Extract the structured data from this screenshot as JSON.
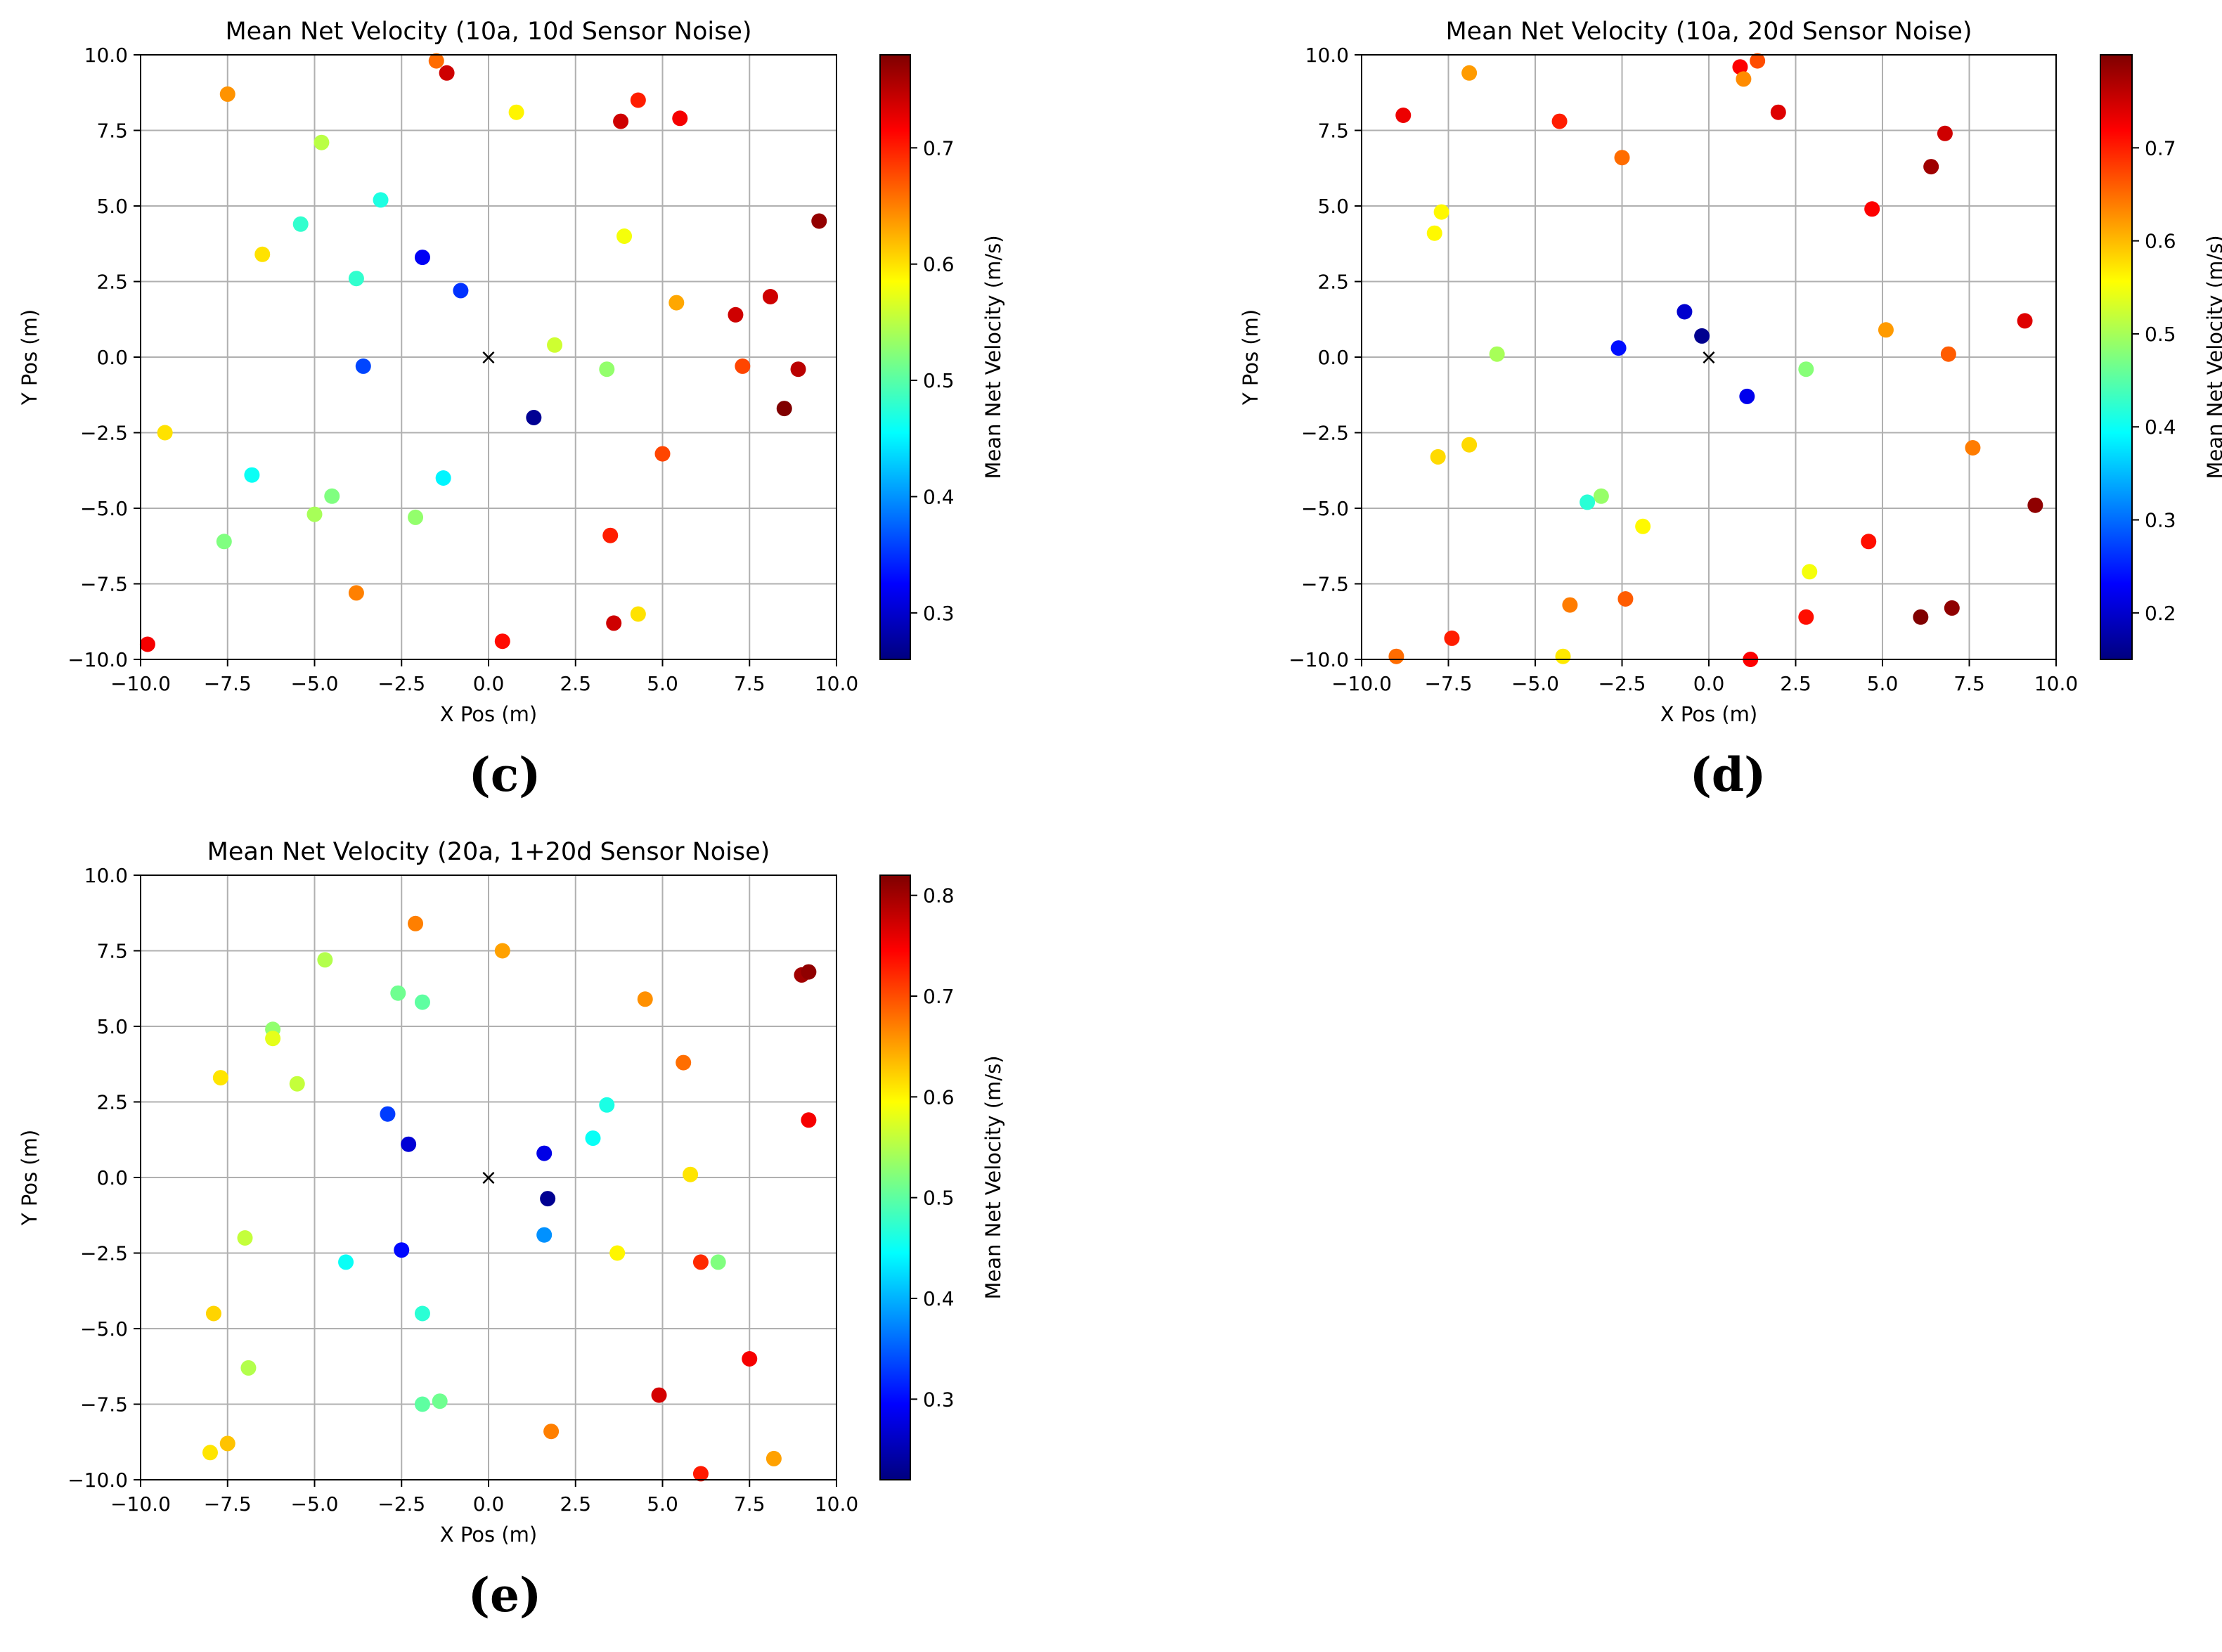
{
  "chart_data": [
    {
      "type": "scatter",
      "panel_label": "(c)",
      "title": "Mean Net Velocity (10a, 10d Sensor Noise)",
      "xlabel": "X Pos (m)",
      "ylabel": "Y Pos (m)",
      "xlim": [
        -10,
        10
      ],
      "ylim": [
        -10,
        10
      ],
      "grid": true,
      "x_ticks": [
        -10,
        -7.5,
        -5,
        -2.5,
        0,
        2.5,
        5,
        7.5,
        10
      ],
      "y_ticks": [
        -10,
        -7.5,
        -5,
        -2.5,
        0,
        2.5,
        5,
        7.5,
        10
      ],
      "x_tick_labels": [
        "−10.0",
        "−7.5",
        "−5.0",
        "−2.5",
        "0.0",
        "2.5",
        "5.0",
        "7.5",
        "10.0"
      ],
      "y_tick_labels": [
        "−10.0",
        "−7.5",
        "−5.0",
        "−2.5",
        "0.0",
        "2.5",
        "5.0",
        "7.5",
        "10.0"
      ],
      "origin_marker": "×",
      "colorbar": {
        "label": "Mean Net Velocity (m/s)",
        "range": [
          0.26,
          0.78
        ],
        "ticks": [
          0.3,
          0.4,
          0.5,
          0.6,
          0.7
        ],
        "tick_labels": [
          "0.3",
          "0.4",
          "0.5",
          "0.6",
          "0.7"
        ]
      },
      "points": [
        {
          "x": -1.5,
          "y": 9.8,
          "v": 0.66
        },
        {
          "x": -1.2,
          "y": 9.4,
          "v": 0.74
        },
        {
          "x": -7.5,
          "y": 8.7,
          "v": 0.64
        },
        {
          "x": 0.8,
          "y": 8.1,
          "v": 0.59
        },
        {
          "x": 4.3,
          "y": 8.5,
          "v": 0.7
        },
        {
          "x": 3.8,
          "y": 7.8,
          "v": 0.74
        },
        {
          "x": 5.5,
          "y": 7.9,
          "v": 0.72
        },
        {
          "x": -4.8,
          "y": 7.1,
          "v": 0.55
        },
        {
          "x": -3.1,
          "y": 5.2,
          "v": 0.47
        },
        {
          "x": -5.4,
          "y": 4.4,
          "v": 0.48
        },
        {
          "x": 9.5,
          "y": 4.5,
          "v": 0.77
        },
        {
          "x": 3.9,
          "y": 4.0,
          "v": 0.58
        },
        {
          "x": -6.5,
          "y": 3.4,
          "v": 0.6
        },
        {
          "x": -1.9,
          "y": 3.3,
          "v": 0.32
        },
        {
          "x": -3.8,
          "y": 2.6,
          "v": 0.48
        },
        {
          "x": -0.8,
          "y": 2.2,
          "v": 0.35
        },
        {
          "x": 5.4,
          "y": 1.8,
          "v": 0.63
        },
        {
          "x": 8.1,
          "y": 2.0,
          "v": 0.74
        },
        {
          "x": 7.1,
          "y": 1.4,
          "v": 0.74
        },
        {
          "x": 1.9,
          "y": 0.4,
          "v": 0.56
        },
        {
          "x": -3.6,
          "y": -0.3,
          "v": 0.36
        },
        {
          "x": 3.4,
          "y": -0.4,
          "v": 0.53
        },
        {
          "x": 7.3,
          "y": -0.3,
          "v": 0.68
        },
        {
          "x": 8.9,
          "y": -0.4,
          "v": 0.75
        },
        {
          "x": 8.5,
          "y": -1.7,
          "v": 0.78
        },
        {
          "x": 1.3,
          "y": -2.0,
          "v": 0.27
        },
        {
          "x": -9.3,
          "y": -2.5,
          "v": 0.6
        },
        {
          "x": 5.0,
          "y": -3.2,
          "v": 0.68
        },
        {
          "x": -6.8,
          "y": -3.9,
          "v": 0.46
        },
        {
          "x": -1.3,
          "y": -4.0,
          "v": 0.45
        },
        {
          "x": -4.5,
          "y": -4.6,
          "v": 0.52
        },
        {
          "x": -5.0,
          "y": -5.2,
          "v": 0.54
        },
        {
          "x": -2.1,
          "y": -5.3,
          "v": 0.53
        },
        {
          "x": 3.5,
          "y": -5.9,
          "v": 0.7
        },
        {
          "x": -7.6,
          "y": -6.1,
          "v": 0.52
        },
        {
          "x": -3.8,
          "y": -7.8,
          "v": 0.65
        },
        {
          "x": 4.3,
          "y": -8.5,
          "v": 0.6
        },
        {
          "x": 3.6,
          "y": -8.8,
          "v": 0.74
        },
        {
          "x": -9.8,
          "y": -9.5,
          "v": 0.72
        },
        {
          "x": 0.4,
          "y": -9.4,
          "v": 0.71
        }
      ]
    },
    {
      "type": "scatter",
      "panel_label": "(d)",
      "title": "Mean Net Velocity (10a, 20d Sensor Noise)",
      "xlabel": "X Pos (m)",
      "ylabel": "Y Pos (m)",
      "xlim": [
        -10,
        10
      ],
      "ylim": [
        -10,
        10
      ],
      "grid": true,
      "x_ticks": [
        -10,
        -7.5,
        -5,
        -2.5,
        0,
        2.5,
        5,
        7.5,
        10
      ],
      "y_ticks": [
        -10,
        -7.5,
        -5,
        -2.5,
        0,
        2.5,
        5,
        7.5,
        10
      ],
      "x_tick_labels": [
        "−10.0",
        "−7.5",
        "−5.0",
        "−2.5",
        "0.0",
        "2.5",
        "5.0",
        "7.5",
        "10.0"
      ],
      "y_tick_labels": [
        "−10.0",
        "−7.5",
        "−5.0",
        "−2.5",
        "0.0",
        "2.5",
        "5.0",
        "7.5",
        "10.0"
      ],
      "origin_marker": "×",
      "colorbar": {
        "label": "Mean Net Velocity (m/s)",
        "range": [
          0.15,
          0.8
        ],
        "ticks": [
          0.2,
          0.3,
          0.4,
          0.5,
          0.6,
          0.7
        ],
        "tick_labels": [
          "0.2",
          "0.3",
          "0.4",
          "0.5",
          "0.6",
          "0.7"
        ]
      },
      "points": [
        {
          "x": 0.9,
          "y": 9.6,
          "v": 0.72
        },
        {
          "x": 1.4,
          "y": 9.8,
          "v": 0.67
        },
        {
          "x": 1.0,
          "y": 9.2,
          "v": 0.63
        },
        {
          "x": -6.9,
          "y": 9.4,
          "v": 0.62
        },
        {
          "x": -8.8,
          "y": 8.0,
          "v": 0.73
        },
        {
          "x": 2.0,
          "y": 8.1,
          "v": 0.74
        },
        {
          "x": -4.3,
          "y": 7.8,
          "v": 0.7
        },
        {
          "x": 6.8,
          "y": 7.4,
          "v": 0.75
        },
        {
          "x": -2.5,
          "y": 6.6,
          "v": 0.65
        },
        {
          "x": 6.4,
          "y": 6.3,
          "v": 0.78
        },
        {
          "x": 4.7,
          "y": 4.9,
          "v": 0.72
        },
        {
          "x": -7.7,
          "y": 4.8,
          "v": 0.56
        },
        {
          "x": -7.9,
          "y": 4.1,
          "v": 0.56
        },
        {
          "x": -0.7,
          "y": 1.5,
          "v": 0.2
        },
        {
          "x": 9.1,
          "y": 1.2,
          "v": 0.74
        },
        {
          "x": 5.1,
          "y": 0.9,
          "v": 0.62
        },
        {
          "x": -0.2,
          "y": 0.7,
          "v": 0.16
        },
        {
          "x": -2.6,
          "y": 0.3,
          "v": 0.24
        },
        {
          "x": -6.1,
          "y": 0.1,
          "v": 0.5
        },
        {
          "x": 6.9,
          "y": 0.1,
          "v": 0.66
        },
        {
          "x": 2.8,
          "y": -0.4,
          "v": 0.48
        },
        {
          "x": 1.1,
          "y": -1.3,
          "v": 0.22
        },
        {
          "x": -6.9,
          "y": -2.9,
          "v": 0.58
        },
        {
          "x": -7.8,
          "y": -3.3,
          "v": 0.58
        },
        {
          "x": 7.6,
          "y": -3.0,
          "v": 0.64
        },
        {
          "x": -3.1,
          "y": -4.6,
          "v": 0.49
        },
        {
          "x": -3.5,
          "y": -4.8,
          "v": 0.42
        },
        {
          "x": 9.4,
          "y": -4.9,
          "v": 0.79
        },
        {
          "x": -1.9,
          "y": -5.6,
          "v": 0.56
        },
        {
          "x": 4.6,
          "y": -6.1,
          "v": 0.71
        },
        {
          "x": 2.9,
          "y": -7.1,
          "v": 0.55
        },
        {
          "x": -4.0,
          "y": -8.2,
          "v": 0.64
        },
        {
          "x": -2.4,
          "y": -8.0,
          "v": 0.66
        },
        {
          "x": 2.8,
          "y": -8.6,
          "v": 0.71
        },
        {
          "x": 6.1,
          "y": -8.6,
          "v": 0.8
        },
        {
          "x": 7.0,
          "y": -8.3,
          "v": 0.79
        },
        {
          "x": -7.4,
          "y": -9.3,
          "v": 0.7
        },
        {
          "x": -9.0,
          "y": -9.9,
          "v": 0.65
        },
        {
          "x": -4.2,
          "y": -9.9,
          "v": 0.57
        },
        {
          "x": 1.2,
          "y": -10.0,
          "v": 0.72
        }
      ]
    },
    {
      "type": "scatter",
      "panel_label": "(e)",
      "title": "Mean Net Velocity (20a, 1+20d Sensor Noise)",
      "xlabel": "X Pos (m)",
      "ylabel": "Y Pos (m)",
      "xlim": [
        -10,
        10
      ],
      "ylim": [
        -10,
        10
      ],
      "grid": true,
      "x_ticks": [
        -10,
        -7.5,
        -5,
        -2.5,
        0,
        2.5,
        5,
        7.5,
        10
      ],
      "y_ticks": [
        -10,
        -7.5,
        -5,
        -2.5,
        0,
        2.5,
        5,
        7.5,
        10
      ],
      "x_tick_labels": [
        "−10.0",
        "−7.5",
        "−5.0",
        "−2.5",
        "0.0",
        "2.5",
        "5.0",
        "7.5",
        "10.0"
      ],
      "y_tick_labels": [
        "−10.0",
        "−7.5",
        "−5.0",
        "−2.5",
        "0.0",
        "2.5",
        "5.0",
        "7.5",
        "10.0"
      ],
      "origin_marker": "×",
      "colorbar": {
        "label": "Mean Net Velocity (m/s)",
        "range": [
          0.22,
          0.82
        ],
        "ticks": [
          0.3,
          0.4,
          0.5,
          0.6,
          0.7,
          0.8
        ],
        "tick_labels": [
          "0.3",
          "0.4",
          "0.5",
          "0.6",
          "0.7",
          "0.8"
        ]
      },
      "points": [
        {
          "x": -2.1,
          "y": 8.4,
          "v": 0.67
        },
        {
          "x": 0.4,
          "y": 7.5,
          "v": 0.65
        },
        {
          "x": -4.7,
          "y": 7.2,
          "v": 0.55
        },
        {
          "x": 9.0,
          "y": 6.7,
          "v": 0.8
        },
        {
          "x": 9.2,
          "y": 6.8,
          "v": 0.81
        },
        {
          "x": -2.6,
          "y": 6.1,
          "v": 0.51
        },
        {
          "x": -1.9,
          "y": 5.8,
          "v": 0.5
        },
        {
          "x": 4.5,
          "y": 5.9,
          "v": 0.66
        },
        {
          "x": -6.2,
          "y": 4.9,
          "v": 0.53
        },
        {
          "x": -6.2,
          "y": 4.6,
          "v": 0.58
        },
        {
          "x": 5.6,
          "y": 3.8,
          "v": 0.68
        },
        {
          "x": -7.7,
          "y": 3.3,
          "v": 0.61
        },
        {
          "x": -5.5,
          "y": 3.1,
          "v": 0.56
        },
        {
          "x": 3.4,
          "y": 2.4,
          "v": 0.46
        },
        {
          "x": -2.9,
          "y": 2.1,
          "v": 0.33
        },
        {
          "x": 9.2,
          "y": 1.9,
          "v": 0.75
        },
        {
          "x": 3.0,
          "y": 1.3,
          "v": 0.45
        },
        {
          "x": -2.3,
          "y": 1.1,
          "v": 0.27
        },
        {
          "x": 1.6,
          "y": 0.8,
          "v": 0.28
        },
        {
          "x": 5.8,
          "y": 0.1,
          "v": 0.61
        },
        {
          "x": 1.7,
          "y": -0.7,
          "v": 0.23
        },
        {
          "x": 1.6,
          "y": -1.9,
          "v": 0.38
        },
        {
          "x": -7.0,
          "y": -2.0,
          "v": 0.56
        },
        {
          "x": -2.5,
          "y": -2.4,
          "v": 0.3
        },
        {
          "x": 3.7,
          "y": -2.5,
          "v": 0.6
        },
        {
          "x": -4.1,
          "y": -2.8,
          "v": 0.45
        },
        {
          "x": 6.1,
          "y": -2.8,
          "v": 0.72
        },
        {
          "x": 6.6,
          "y": -2.8,
          "v": 0.52
        },
        {
          "x": -7.9,
          "y": -4.5,
          "v": 0.62
        },
        {
          "x": -1.9,
          "y": -4.5,
          "v": 0.47
        },
        {
          "x": 7.5,
          "y": -6.0,
          "v": 0.75
        },
        {
          "x": -6.9,
          "y": -6.3,
          "v": 0.55
        },
        {
          "x": 4.9,
          "y": -7.2,
          "v": 0.77
        },
        {
          "x": -1.4,
          "y": -7.4,
          "v": 0.51
        },
        {
          "x": -1.9,
          "y": -7.5,
          "v": 0.5
        },
        {
          "x": 1.8,
          "y": -8.4,
          "v": 0.67
        },
        {
          "x": -7.5,
          "y": -8.8,
          "v": 0.63
        },
        {
          "x": -8.0,
          "y": -9.1,
          "v": 0.61
        },
        {
          "x": 8.2,
          "y": -9.3,
          "v": 0.65
        },
        {
          "x": 6.1,
          "y": -9.8,
          "v": 0.73
        }
      ]
    }
  ]
}
